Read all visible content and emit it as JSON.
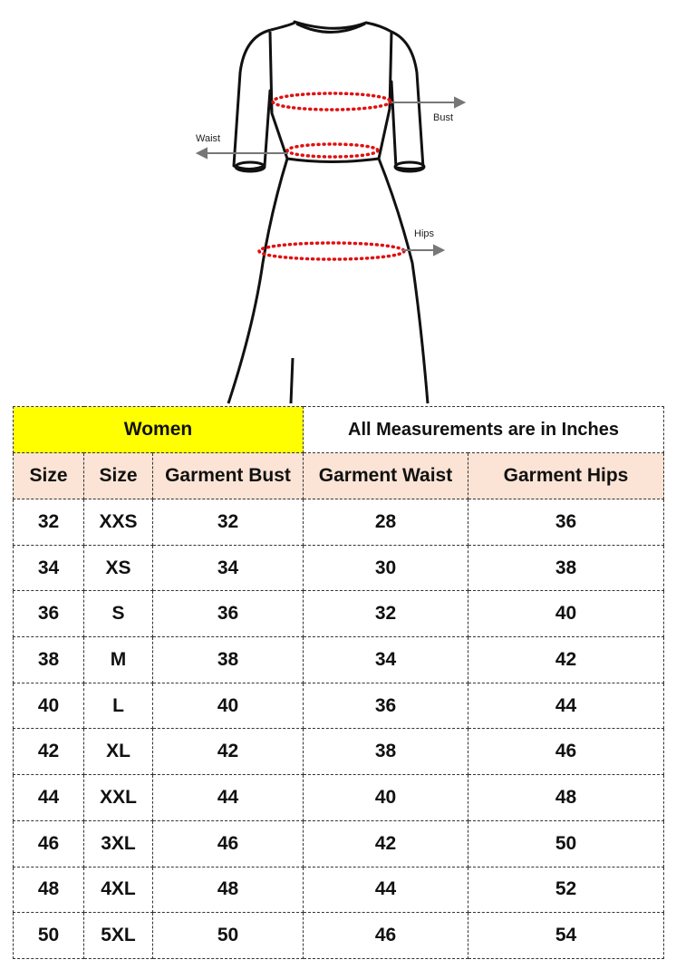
{
  "illustration": {
    "labels": {
      "bust": "Bust",
      "waist": "Waist",
      "hips": "Hips"
    },
    "dot_color": "#e01010"
  },
  "table": {
    "title": "Women",
    "note": "All Measurements are in Inches",
    "colors": {
      "title_bg": "#ffff00",
      "header_bg": "#fbe4d5"
    },
    "headers": [
      "Size",
      "Size",
      "Garment Bust",
      "Garment Waist",
      "Garment Hips"
    ],
    "rows": [
      [
        "32",
        "XXS",
        "32",
        "28",
        "36"
      ],
      [
        "34",
        "XS",
        "34",
        "30",
        "38"
      ],
      [
        "36",
        "S",
        "36",
        "32",
        "40"
      ],
      [
        "38",
        "M",
        "38",
        "34",
        "42"
      ],
      [
        "40",
        "L",
        "40",
        "36",
        "44"
      ],
      [
        "42",
        "XL",
        "42",
        "38",
        "46"
      ],
      [
        "44",
        "XXL",
        "44",
        "40",
        "48"
      ],
      [
        "46",
        "3XL",
        "46",
        "42",
        "50"
      ],
      [
        "48",
        "4XL",
        "48",
        "44",
        "52"
      ],
      [
        "50",
        "5XL",
        "50",
        "46",
        "54"
      ]
    ]
  }
}
